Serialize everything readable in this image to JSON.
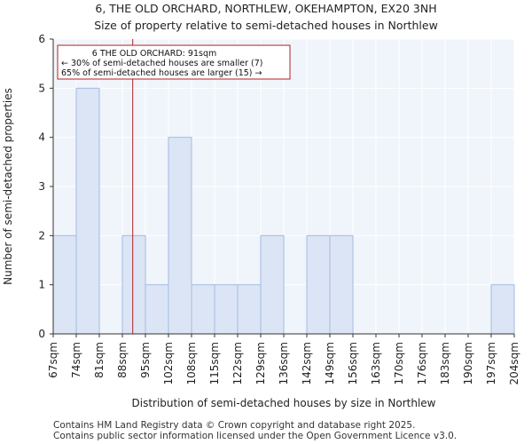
{
  "title_line1": "6, THE OLD ORCHARD, NORTHLEW, OKEHAMPTON, EX20 3NH",
  "title_line2": "Size of property relative to semi-detached houses in Northlew",
  "footer_line1": "Contains HM Land Registry data © Crown copyright and database right 2025.",
  "footer_line2": "Contains public sector information licensed under the Open Government Licence v3.0.",
  "colors": {
    "bar_fill": "#dbe5f5",
    "bar_stroke": "#a4bbdf",
    "grid": "#dfe6f3",
    "marker": "#b22222",
    "annotation_border": "#b22222",
    "axis": "#333333"
  },
  "chart_data": {
    "type": "bar",
    "title": "Size of property relative to semi-detached houses in Northlew",
    "xlabel": "Distribution of semi-detached houses by size in Northlew",
    "ylabel": "Number of semi-detached properties",
    "ylim": [
      0,
      6
    ],
    "yticks": [
      "0",
      "1",
      "2",
      "3",
      "4",
      "5",
      "6"
    ],
    "categories": [
      "67sqm",
      "74sqm",
      "81sqm",
      "88sqm",
      "95sqm",
      "102sqm",
      "108sqm",
      "115sqm",
      "122sqm",
      "129sqm",
      "136sqm",
      "142sqm",
      "149sqm",
      "156sqm",
      "163sqm",
      "170sqm",
      "176sqm",
      "183sqm",
      "190sqm",
      "197sqm",
      "204sqm"
    ],
    "values": [
      2,
      5,
      0,
      2,
      1,
      4,
      1,
      1,
      1,
      2,
      0,
      2,
      2,
      0,
      0,
      0,
      0,
      0,
      0,
      1,
      0
    ],
    "grid": true,
    "marker": {
      "value_sqm": 91,
      "bin_position": 3.45
    },
    "annotation": {
      "line1": "6 THE OLD ORCHARD: 91sqm",
      "line2": "← 30% of semi-detached houses are smaller (7)",
      "line3": "65% of semi-detached houses are larger (15) →"
    }
  }
}
